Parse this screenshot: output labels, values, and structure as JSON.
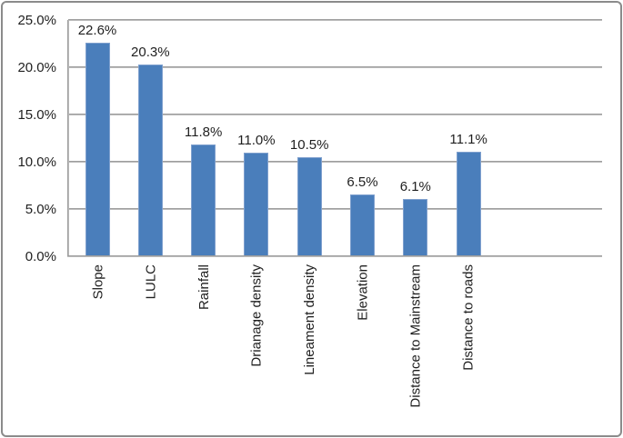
{
  "chart_data": {
    "type": "bar",
    "categories": [
      "Slope",
      "LULC",
      "Rainfall",
      "Drianage density",
      "Lineament density",
      "Elevation",
      "Distance to Mainstream",
      "Distance to roads"
    ],
    "values": [
      22.6,
      20.3,
      11.8,
      11.0,
      10.5,
      6.5,
      6.1,
      11.1
    ],
    "value_labels": [
      "22.6%",
      "20.3%",
      "11.8%",
      "11.0%",
      "10.5%",
      "6.5%",
      "6.1%",
      "11.1%"
    ],
    "title": "",
    "xlabel": "",
    "ylabel": "",
    "ylim": [
      0,
      25
    ],
    "ytick_step": 5,
    "ytick_labels": [
      "0.0%",
      "5.0%",
      "10.0%",
      "15.0%",
      "20.0%",
      "25.0%"
    ],
    "grid": true,
    "legend": false,
    "colors": {
      "bar_fill": "#4a7ebb",
      "bar_border": "#7fa0ce",
      "gridline": "#9a9a9a",
      "axis": "#9a9a9a",
      "text": "#1f1f1f",
      "frame_border": "#8b8b8b",
      "background": "#ffffff"
    }
  }
}
